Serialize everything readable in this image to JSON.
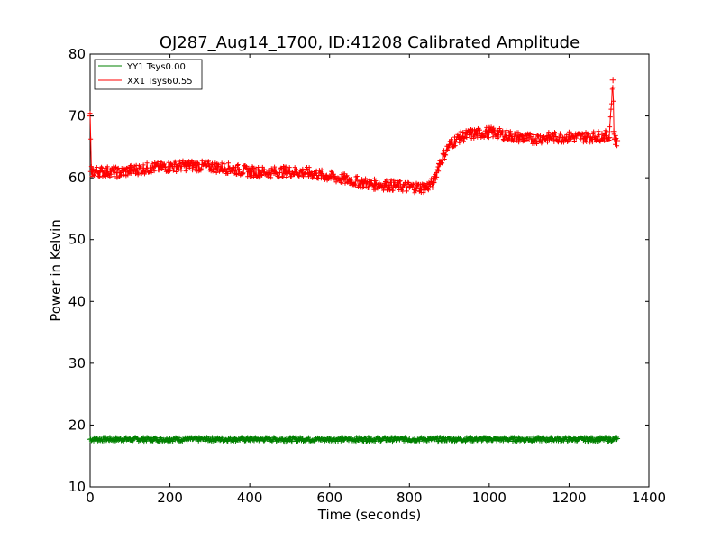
{
  "chart_data": {
    "type": "line",
    "title": "OJ287_Aug14_1700, ID:41208 Calibrated Amplitude",
    "xlabel": "Time (seconds)",
    "ylabel": "Power in Kelvin",
    "xlim": [
      0,
      1400
    ],
    "ylim": [
      10,
      80
    ],
    "x_ticks": [
      "0",
      "200",
      "400",
      "600",
      "800",
      "1000",
      "1200",
      "1400"
    ],
    "y_ticks": [
      "10",
      "20",
      "30",
      "40",
      "50",
      "60",
      "70",
      "80"
    ],
    "grid": false,
    "legend_position": "top-left",
    "marker": "+",
    "series": [
      {
        "name": "YY1 Tsys0.00",
        "color": "#008000",
        "x": [
          0,
          100,
          200,
          300,
          400,
          500,
          600,
          700,
          800,
          900,
          1000,
          1100,
          1200,
          1300,
          1310,
          1320
        ],
        "y": [
          17.7,
          17.7,
          17.7,
          17.7,
          17.7,
          17.7,
          17.7,
          17.7,
          17.7,
          17.7,
          17.7,
          17.7,
          17.7,
          17.7,
          17.7,
          17.8
        ]
      },
      {
        "name": "XX1 Tsys60.55",
        "color": "#ff0000",
        "x": [
          0,
          3,
          6,
          25,
          50,
          75,
          100,
          150,
          200,
          250,
          300,
          350,
          400,
          450,
          500,
          550,
          600,
          650,
          700,
          750,
          800,
          840,
          860,
          875,
          900,
          925,
          950,
          975,
          1000,
          1050,
          1100,
          1150,
          1200,
          1250,
          1290,
          1300,
          1310,
          1312,
          1315,
          1320
        ],
        "y": [
          70.0,
          61.0,
          61.0,
          61.0,
          61.0,
          60.8,
          61.2,
          61.6,
          61.8,
          62.0,
          61.8,
          61.5,
          61.0,
          60.9,
          61.0,
          60.8,
          60.2,
          59.6,
          59.0,
          58.8,
          58.5,
          58.4,
          59.2,
          62.3,
          65.3,
          66.5,
          67.0,
          67.2,
          67.4,
          66.8,
          66.3,
          66.5,
          66.6,
          66.6,
          66.8,
          66.5,
          75.8,
          67.5,
          66.2,
          66.0
        ]
      }
    ]
  }
}
